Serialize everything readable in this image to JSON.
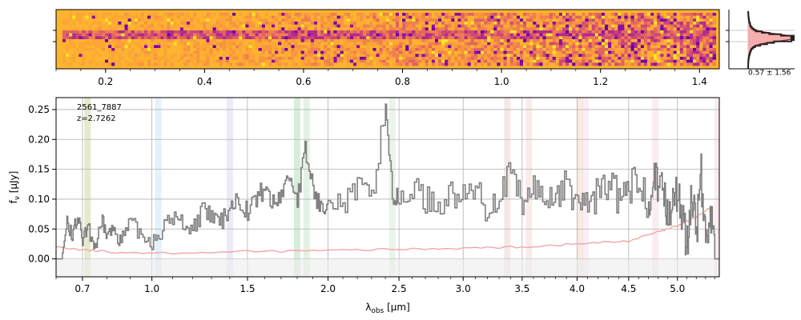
{
  "chart_data": [
    {
      "type": "heatmap",
      "panel": "2d-spectrum",
      "colormap": "plasma",
      "x_unit_note": "wavelength (μm)",
      "x_ticks": [
        "0.2",
        "0.4",
        "0.6",
        "0.8",
        "1.0",
        "1.2",
        "1.4"
      ],
      "x_tick_values": [
        0.2,
        0.4,
        0.6,
        0.8,
        1.0,
        1.2,
        1.4
      ],
      "xlim": [
        0.1,
        1.44
      ],
      "rows": 18,
      "trace_rows": [
        6,
        7,
        8
      ]
    },
    {
      "type": "histogram",
      "panel": "pixel-distribution",
      "stat_label": "0.57 ± 1.56",
      "fill_color": "#f5a0a0",
      "line_colors": [
        "#222222",
        "#b22222"
      ]
    },
    {
      "type": "line",
      "panel": "1d-spectrum",
      "annotation_id": "2561_7887",
      "annotation_z": "z=2.7262",
      "xlabel": "λobs [μm]",
      "xlabel_main": "λ",
      "xlabel_sub": "obs",
      "xlabel_unit": " [μm]",
      "ylabel": "fν [μJy]",
      "ylabel_main": "f",
      "ylabel_sub": "ν",
      "ylabel_unit": " [μJy]",
      "xlim": [
        0.6,
        5.45
      ],
      "ylim": [
        -0.03,
        0.27
      ],
      "x_ticks": [
        "0.7",
        "1.0",
        "1.5",
        "2.0",
        "2.5",
        "3.0",
        "3.5",
        "4.0",
        "4.5",
        "5.0"
      ],
      "x_tick_values": [
        0.7,
        1.0,
        1.5,
        2.0,
        2.5,
        3.0,
        3.5,
        4.0,
        4.5,
        5.0
      ],
      "y_ticks": [
        "0.00",
        "0.05",
        "0.10",
        "0.15",
        "0.20",
        "0.25"
      ],
      "y_tick_values": [
        0.0,
        0.05,
        0.1,
        0.15,
        0.2,
        0.25
      ],
      "grid": true,
      "series": [
        {
          "role": "flux",
          "color": "#808080",
          "x": [
            0.6,
            0.62,
            0.64,
            0.66,
            0.68,
            0.7,
            0.72,
            0.75,
            0.78,
            0.8,
            0.83,
            0.86,
            0.9,
            0.95,
            1.0,
            1.05,
            1.1,
            1.15,
            1.2,
            1.25,
            1.3,
            1.35,
            1.4,
            1.45,
            1.5,
            1.55,
            1.6,
            1.65,
            1.7,
            1.75,
            1.8,
            1.85,
            1.9,
            1.95,
            2.0,
            2.1,
            2.2,
            2.3,
            2.4,
            2.45,
            2.5,
            2.6,
            2.7,
            2.8,
            2.9,
            3.0,
            3.1,
            3.2,
            3.3,
            3.4,
            3.5,
            3.6,
            3.7,
            3.8,
            3.9,
            4.0,
            4.1,
            4.2,
            4.3,
            4.4,
            4.5,
            4.6,
            4.7,
            4.75,
            4.8,
            4.85,
            4.9,
            4.95,
            5.0,
            5.05,
            5.1,
            5.15,
            5.2,
            5.25,
            5.3,
            5.35,
            5.4,
            5.45
          ],
          "y": [
            0.0,
            0.0,
            0.06,
            0.04,
            0.07,
            0.03,
            0.05,
            0.02,
            0.06,
            0.04,
            0.05,
            0.03,
            0.06,
            0.04,
            0.03,
            0.05,
            0.07,
            0.06,
            0.05,
            0.08,
            0.07,
            0.06,
            0.09,
            0.1,
            0.08,
            0.1,
            0.12,
            0.09,
            0.11,
            0.14,
            0.1,
            0.18,
            0.12,
            0.08,
            0.11,
            0.09,
            0.12,
            0.1,
            0.26,
            0.11,
            0.09,
            0.12,
            0.1,
            0.09,
            0.11,
            0.1,
            0.12,
            0.08,
            0.11,
            0.14,
            0.09,
            0.12,
            0.1,
            0.11,
            0.12,
            0.1,
            0.09,
            0.11,
            0.13,
            0.1,
            0.11,
            0.14,
            0.09,
            0.16,
            0.1,
            0.13,
            0.06,
            0.12,
            0.1,
            0.08,
            0.02,
            0.11,
            0.05,
            0.14,
            0.02,
            0.09,
            0.0,
            0.0
          ]
        },
        {
          "role": "error",
          "color": "#f4a6a6",
          "x": [
            0.6,
            0.7,
            0.8,
            1.0,
            1.5,
            2.0,
            2.5,
            3.0,
            3.5,
            4.0,
            4.5,
            4.8,
            5.0,
            5.2,
            5.4
          ],
          "y": [
            0.02,
            0.015,
            0.012,
            0.01,
            0.012,
            0.014,
            0.016,
            0.018,
            0.02,
            0.025,
            0.03,
            0.045,
            0.055,
            0.07,
            0.09
          ]
        }
      ],
      "line_bands": [
        {
          "x": 0.72,
          "color": "#cfd8a8"
        },
        {
          "x": 1.03,
          "color": "#cde6f5"
        },
        {
          "x": 1.4,
          "color": "#d8d8f5"
        },
        {
          "x": 1.8,
          "color": "#b8e0b8"
        },
        {
          "x": 1.86,
          "color": "#cce8cc"
        },
        {
          "x": 2.45,
          "color": "#d6ecd6"
        },
        {
          "x": 3.37,
          "color": "#f0d6d6"
        },
        {
          "x": 3.56,
          "color": "#f5dada"
        },
        {
          "x": 4.03,
          "color": "#f8d8c8"
        },
        {
          "x": 4.08,
          "color": "#f5e0f0"
        },
        {
          "x": 4.77,
          "color": "#f8dce8"
        },
        {
          "x": 5.43,
          "color": "#f8dce8"
        }
      ]
    }
  ]
}
